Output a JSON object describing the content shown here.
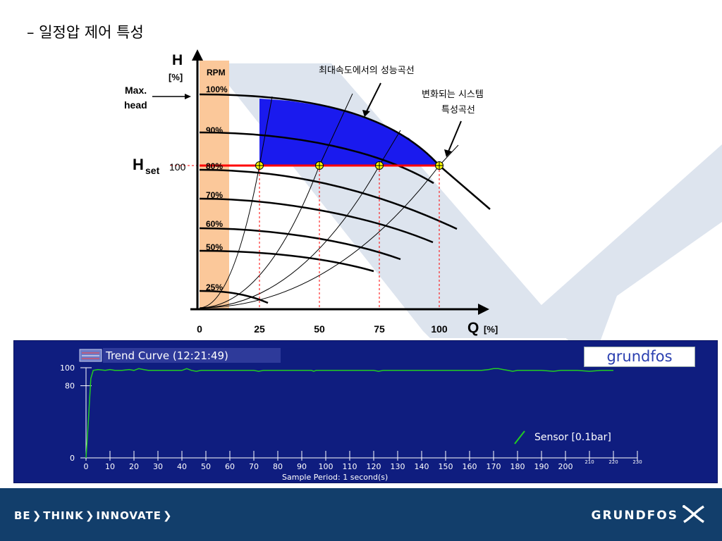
{
  "slide": {
    "title": "– 일정압 제어 특성"
  },
  "main_chart": {
    "y_axis_label": "H",
    "y_axis_unit": "[%]",
    "x_axis_label": "Q",
    "x_axis_unit": "[%]",
    "rpm_header": "RPM",
    "max_head_label_line1": "Max.",
    "max_head_label_line2": "head",
    "hset_label_main": "H",
    "hset_label_sub": "set",
    "hset_value": "100",
    "annotation_max_speed": "최대속도에서의 성능곡선",
    "annotation_system_line1": "변화되는 시스템",
    "annotation_system_line2": "특성곡선",
    "colors": {
      "rpm_band": "#fbc89a",
      "blue_area": "#1a1aee",
      "setpoint_line": "#ff0000",
      "op_point": "#ffff00",
      "dashed": "#ff0000"
    }
  },
  "chart_data": [
    {
      "type": "line",
      "title": "",
      "xlabel": "Q [%]",
      "ylabel": "H [%]",
      "x_ticks": [
        "0",
        "25",
        "50",
        "75",
        "100"
      ],
      "speed_curves": [
        {
          "name": "100%"
        },
        {
          "name": "90%"
        },
        {
          "name": "80%"
        },
        {
          "name": "70%"
        },
        {
          "name": "60%"
        },
        {
          "name": "50%"
        },
        {
          "name": "25%"
        }
      ],
      "setpoint_H": 100,
      "operating_points_Q": [
        25,
        50,
        75,
        100
      ]
    },
    {
      "type": "line",
      "title": "Trend Curve (12:21:49)",
      "xlabel": "Sample Period:  1 second(s)",
      "ylabel": "",
      "ylim": [
        0,
        100
      ],
      "y_ticks": [
        "100",
        "80",
        "0"
      ],
      "x_ticks": [
        "0",
        "10",
        "20",
        "30",
        "40",
        "50",
        "60",
        "70",
        "80",
        "90",
        "100",
        "110",
        "120",
        "130",
        "140",
        "150",
        "160",
        "170",
        "180",
        "190",
        "200",
        "210",
        "220",
        "230"
      ],
      "series": [
        {
          "name": "Sensor [0.1bar]",
          "color": "#22cc22",
          "x": [
            0,
            1,
            2,
            3,
            5,
            8,
            10,
            12,
            15,
            18,
            20,
            21,
            22,
            24,
            26,
            28,
            30,
            33,
            35,
            38,
            40,
            41,
            42,
            44,
            46,
            48,
            50,
            55,
            60,
            65,
            70,
            72,
            74,
            76,
            80,
            85,
            90,
            94,
            95,
            96,
            98,
            100,
            105,
            110,
            115,
            120,
            122,
            124,
            126,
            130,
            135,
            140,
            145,
            148,
            150,
            155,
            160,
            165,
            168,
            170,
            172,
            174,
            176,
            178,
            180,
            185,
            190,
            195,
            198,
            200,
            205,
            210,
            215,
            220
          ],
          "y": [
            0,
            42,
            88,
            97,
            98,
            97,
            98,
            97,
            97,
            98,
            97,
            98,
            99,
            98,
            97,
            97,
            97,
            97,
            97,
            97,
            97,
            98,
            99,
            97,
            96,
            97,
            97,
            97,
            97,
            97,
            97,
            96,
            97,
            97,
            97,
            97,
            97,
            97,
            96,
            97,
            97,
            97,
            97,
            97,
            97,
            97,
            96,
            97,
            97,
            97,
            97,
            97,
            97,
            97,
            97,
            97,
            97,
            97,
            98,
            99,
            99,
            98,
            97,
            96,
            97,
            97,
            97,
            96,
            97,
            97,
            97,
            96,
            97,
            97
          ]
        }
      ]
    }
  ],
  "trend_panel": {
    "logo_text": "grundfos"
  },
  "footer": {
    "slogan_parts": [
      "BE",
      "THINK",
      "INNOVATE"
    ],
    "brand": "GRUNDFOS"
  }
}
